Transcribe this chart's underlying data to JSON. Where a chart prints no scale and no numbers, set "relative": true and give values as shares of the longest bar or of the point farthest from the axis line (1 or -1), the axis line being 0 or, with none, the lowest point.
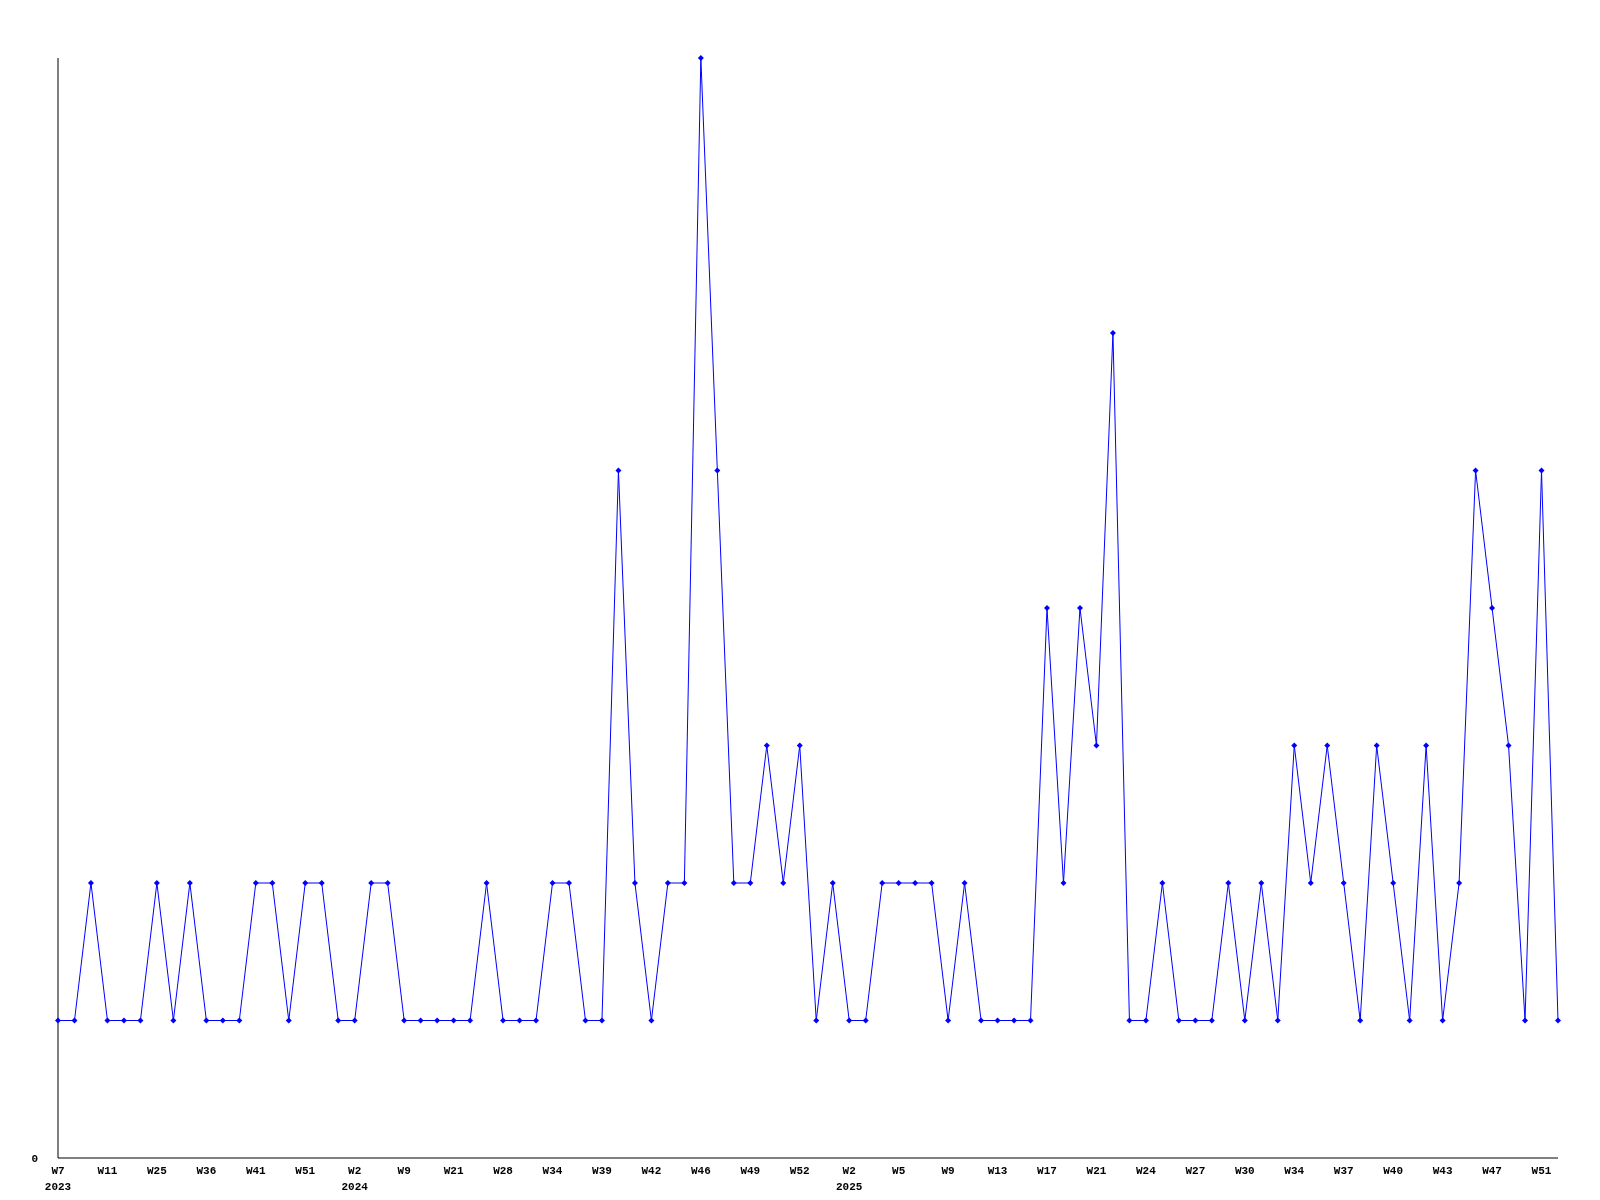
{
  "chart_data": {
    "type": "line",
    "relative": true,
    "marker": "diamond",
    "line_style": "solid",
    "categories": [
      "W7\n2023",
      null,
      null,
      "W11",
      null,
      null,
      "W25",
      null,
      null,
      "W36",
      null,
      null,
      "W41",
      null,
      null,
      "W51",
      null,
      null,
      "W2\n2024",
      null,
      null,
      "W9",
      null,
      null,
      "W21",
      null,
      null,
      "W28",
      null,
      null,
      "W34",
      null,
      null,
      "W39",
      null,
      null,
      "W42",
      null,
      null,
      "W46",
      null,
      null,
      "W49",
      null,
      null,
      "W52",
      null,
      null,
      "W2\n2025",
      null,
      null,
      "W5",
      null,
      null,
      "W9",
      null,
      null,
      "W13",
      null,
      null,
      "W17",
      null,
      null,
      "W21",
      null,
      null,
      "W24",
      null,
      null,
      "W27",
      null,
      null,
      "W30",
      null,
      null,
      "W34",
      null,
      null,
      "W37",
      null,
      null,
      "W40",
      null,
      null,
      "W43",
      null,
      null,
      "W47",
      null,
      null,
      "W51",
      null
    ],
    "series": [
      {
        "color": "#0000ff",
        "values": [
          0.125,
          0.125,
          0.25,
          0.125,
          0.125,
          0.125,
          0.25,
          0.125,
          0.25,
          0.125,
          0.125,
          0.125,
          0.25,
          0.25,
          0.125,
          0.25,
          0.25,
          0.125,
          0.125,
          0.25,
          0.25,
          0.125,
          0.125,
          0.125,
          0.125,
          0.125,
          0.25,
          0.125,
          0.125,
          0.125,
          0.25,
          0.25,
          0.125,
          0.125,
          0.625,
          0.25,
          0.125,
          0.25,
          0.25,
          1,
          0.625,
          0.25,
          0.25,
          0.375,
          0.25,
          0.375,
          0.125,
          0.25,
          0.125,
          0.125,
          0.25,
          0.25,
          0.25,
          0.25,
          0.125,
          0.25,
          0.125,
          0.125,
          0.125,
          0.125,
          0.5,
          0.25,
          0.5,
          0.375,
          0.75,
          0.125,
          0.125,
          0.25,
          0.125,
          0.125,
          0.125,
          0.25,
          0.125,
          0.25,
          0.125,
          0.375,
          0.25,
          0.375,
          0.25,
          0.125,
          0.375,
          0.25,
          0.125,
          0.375,
          0.125,
          0.25,
          0.625,
          0.5,
          0.375,
          0.125,
          0.625,
          0.125
        ]
      }
    ],
    "annotations": [
      "0"
    ]
  }
}
